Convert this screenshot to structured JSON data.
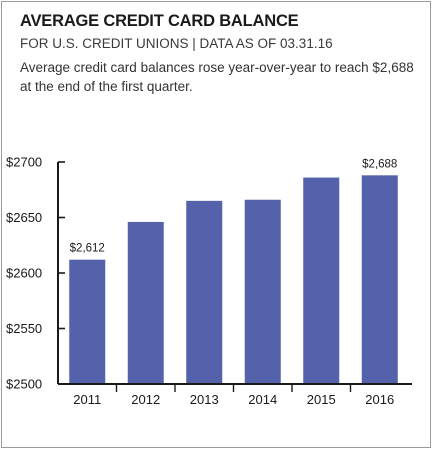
{
  "header": {
    "title": "AVERAGE CREDIT CARD BALANCE",
    "subtitle": "FOR U.S. CREDIT UNIONS | DATA AS OF 03.31.16",
    "description": "Average credit card balances rose year-over-year to reach $2,688 at the end of the first quarter."
  },
  "colors": {
    "bar": "#5461ab",
    "axis": "#1a1a1a",
    "border": "#9a9a9a"
  },
  "chart_data": {
    "type": "bar",
    "title": "AVERAGE CREDIT CARD BALANCE",
    "subtitle": "FOR U.S. CREDIT UNIONS | DATA AS OF 03.31.16",
    "xlabel": "",
    "ylabel": "",
    "categories": [
      "2011",
      "2012",
      "2013",
      "2014",
      "2015",
      "2016"
    ],
    "values": [
      2612,
      2646,
      2665,
      2666,
      2686,
      2688
    ],
    "ylim": [
      2500,
      2700
    ],
    "yticks": [
      2500,
      2550,
      2600,
      2650,
      2700
    ],
    "ytick_labels": [
      "$2500",
      "$2550",
      "$2600",
      "$2650",
      "$2700"
    ],
    "data_labels": [
      {
        "category": "2011",
        "text": "$2,612"
      },
      {
        "category": "2016",
        "text": "$2,688"
      }
    ],
    "grid": false,
    "legend": "none"
  }
}
